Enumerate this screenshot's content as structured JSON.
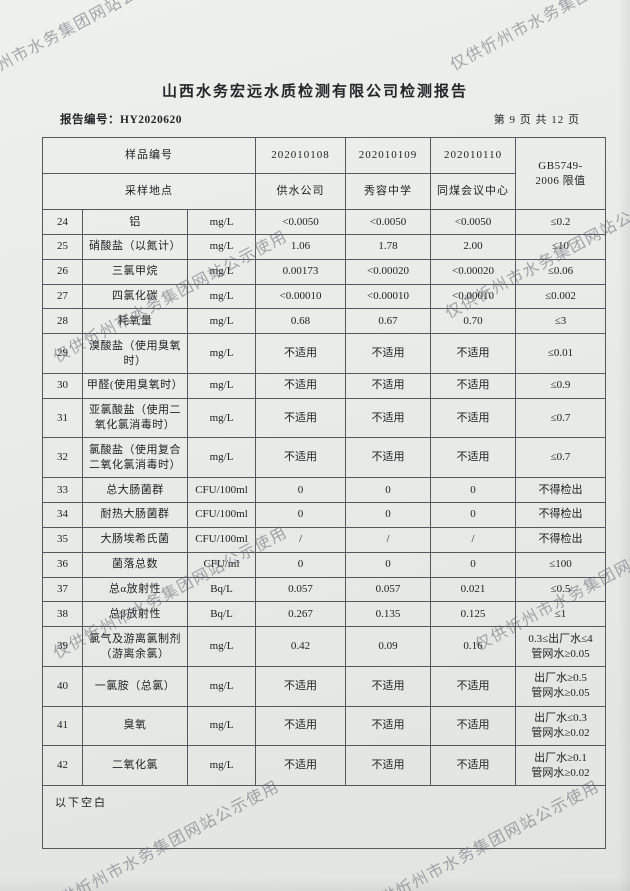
{
  "watermark": {
    "text": "仅供忻州市水务集团网站公示使用"
  },
  "header": {
    "title": "山西水务宏远水质检测有限公司检测报告",
    "report_no": "报告编号：HY2020620",
    "page_info": "第 9 页 共 12 页"
  },
  "table": {
    "head": {
      "sample_id_label": "样品编号",
      "location_label": "采样地点",
      "sample_ids": [
        "202010108",
        "202010109",
        "202010110"
      ],
      "locations": [
        "供水公司",
        "秀容中学",
        "同煤会议中心"
      ],
      "limit_header": "GB5749-\n2006 限值"
    },
    "rows": [
      {
        "no": "24",
        "name": "铝",
        "unit": "mg/L",
        "v1": "<0.0050",
        "v2": "<0.0050",
        "v3": "<0.0050",
        "limit": "≤0.2"
      },
      {
        "no": "25",
        "name": "硝酸盐（以氮计）",
        "unit": "mg/L",
        "v1": "1.06",
        "v2": "1.78",
        "v3": "2.00",
        "limit": "≤10"
      },
      {
        "no": "26",
        "name": "三氯甲烷",
        "unit": "mg/L",
        "v1": "0.00173",
        "v2": "<0.00020",
        "v3": "<0.00020",
        "limit": "≤0.06"
      },
      {
        "no": "27",
        "name": "四氯化碳",
        "unit": "mg/L",
        "v1": "<0.00010",
        "v2": "<0.00010",
        "v3": "<0.00010",
        "limit": "≤0.002"
      },
      {
        "no": "28",
        "name": "耗氧量",
        "unit": "mg/L",
        "v1": "0.68",
        "v2": "0.67",
        "v3": "0.70",
        "limit": "≤3"
      },
      {
        "no": "29",
        "name": "溴酸盐（使用臭氧\n时）",
        "unit": "mg/L",
        "v1": "不适用",
        "v2": "不适用",
        "v3": "不适用",
        "limit": "≤0.01"
      },
      {
        "no": "30",
        "name": "甲醛(使用臭氧时）",
        "unit": "mg/L",
        "v1": "不适用",
        "v2": "不适用",
        "v3": "不适用",
        "limit": "≤0.9"
      },
      {
        "no": "31",
        "name": "亚氯酸盐（使用二\n氧化氯消毒时）",
        "unit": "mg/L",
        "v1": "不适用",
        "v2": "不适用",
        "v3": "不适用",
        "limit": "≤0.7"
      },
      {
        "no": "32",
        "name": "氯酸盐（使用复合\n二氧化氯消毒时）",
        "unit": "mg/L",
        "v1": "不适用",
        "v2": "不适用",
        "v3": "不适用",
        "limit": "≤0.7"
      },
      {
        "no": "33",
        "name": "总大肠菌群",
        "unit": "CFU/100ml",
        "v1": "0",
        "v2": "0",
        "v3": "0",
        "limit": "不得检出"
      },
      {
        "no": "34",
        "name": "耐热大肠菌群",
        "unit": "CFU/100ml",
        "v1": "0",
        "v2": "0",
        "v3": "0",
        "limit": "不得检出"
      },
      {
        "no": "35",
        "name": "大肠埃希氏菌",
        "unit": "CFU/100ml",
        "v1": "/",
        "v2": "/",
        "v3": "/",
        "limit": "不得检出"
      },
      {
        "no": "36",
        "name": "菌落总数",
        "unit": "CFU/ml",
        "v1": "0",
        "v2": "0",
        "v3": "0",
        "limit": "≤100"
      },
      {
        "no": "37",
        "name": "总α放射性",
        "unit": "Bq/L",
        "v1": "0.057",
        "v2": "0.057",
        "v3": "0.021",
        "limit": "≤0.5"
      },
      {
        "no": "38",
        "name": "总β放射性",
        "unit": "Bq/L",
        "v1": "0.267",
        "v2": "0.135",
        "v3": "0.125",
        "limit": "≤1"
      },
      {
        "no": "39",
        "name": "氯气及游离氯制剂\n（游离余氯）",
        "unit": "mg/L",
        "v1": "0.42",
        "v2": "0.09",
        "v3": "0.16",
        "limit": "0.3≤出厂水≤4\n管网水≥0.05"
      },
      {
        "no": "40",
        "name": "一氯胺（总氯）",
        "unit": "mg/L",
        "v1": "不适用",
        "v2": "不适用",
        "v3": "不适用",
        "limit": "出厂水≥0.5\n管网水≥0.05"
      },
      {
        "no": "41",
        "name": "臭氧",
        "unit": "mg/L",
        "v1": "不适用",
        "v2": "不适用",
        "v3": "不适用",
        "limit": "出厂水≤0.3\n管网水≥0.02"
      },
      {
        "no": "42",
        "name": "二氧化氯",
        "unit": "mg/L",
        "v1": "不适用",
        "v2": "不适用",
        "v3": "不适用",
        "limit": "出厂水≥0.1\n管网水≥0.02"
      }
    ],
    "footer_note": "以下空白"
  }
}
